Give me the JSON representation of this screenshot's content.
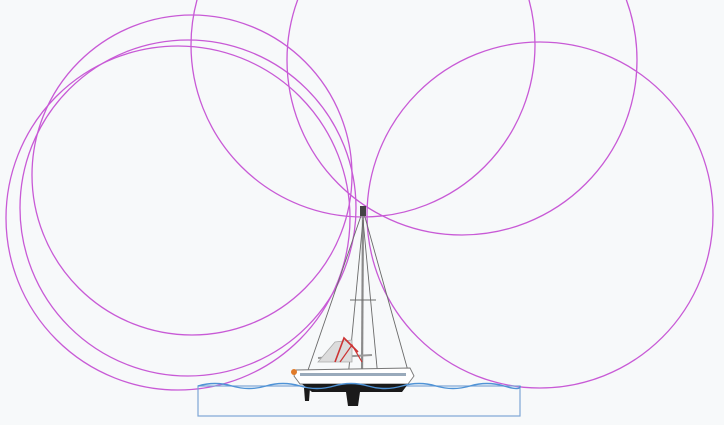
{
  "diagram": {
    "subject": "sailboat-lightning-protection-rolling-sphere",
    "circle_count": 6,
    "colors": {
      "background": "#f7f9fa",
      "circle_stroke": "#c85ad6",
      "water_line": "#4f93d6",
      "hull_outline": "#7fa6d6",
      "hull_fill": "#1a1a1a",
      "deck": "#ffffff",
      "bimini": "#cc3333"
    }
  }
}
